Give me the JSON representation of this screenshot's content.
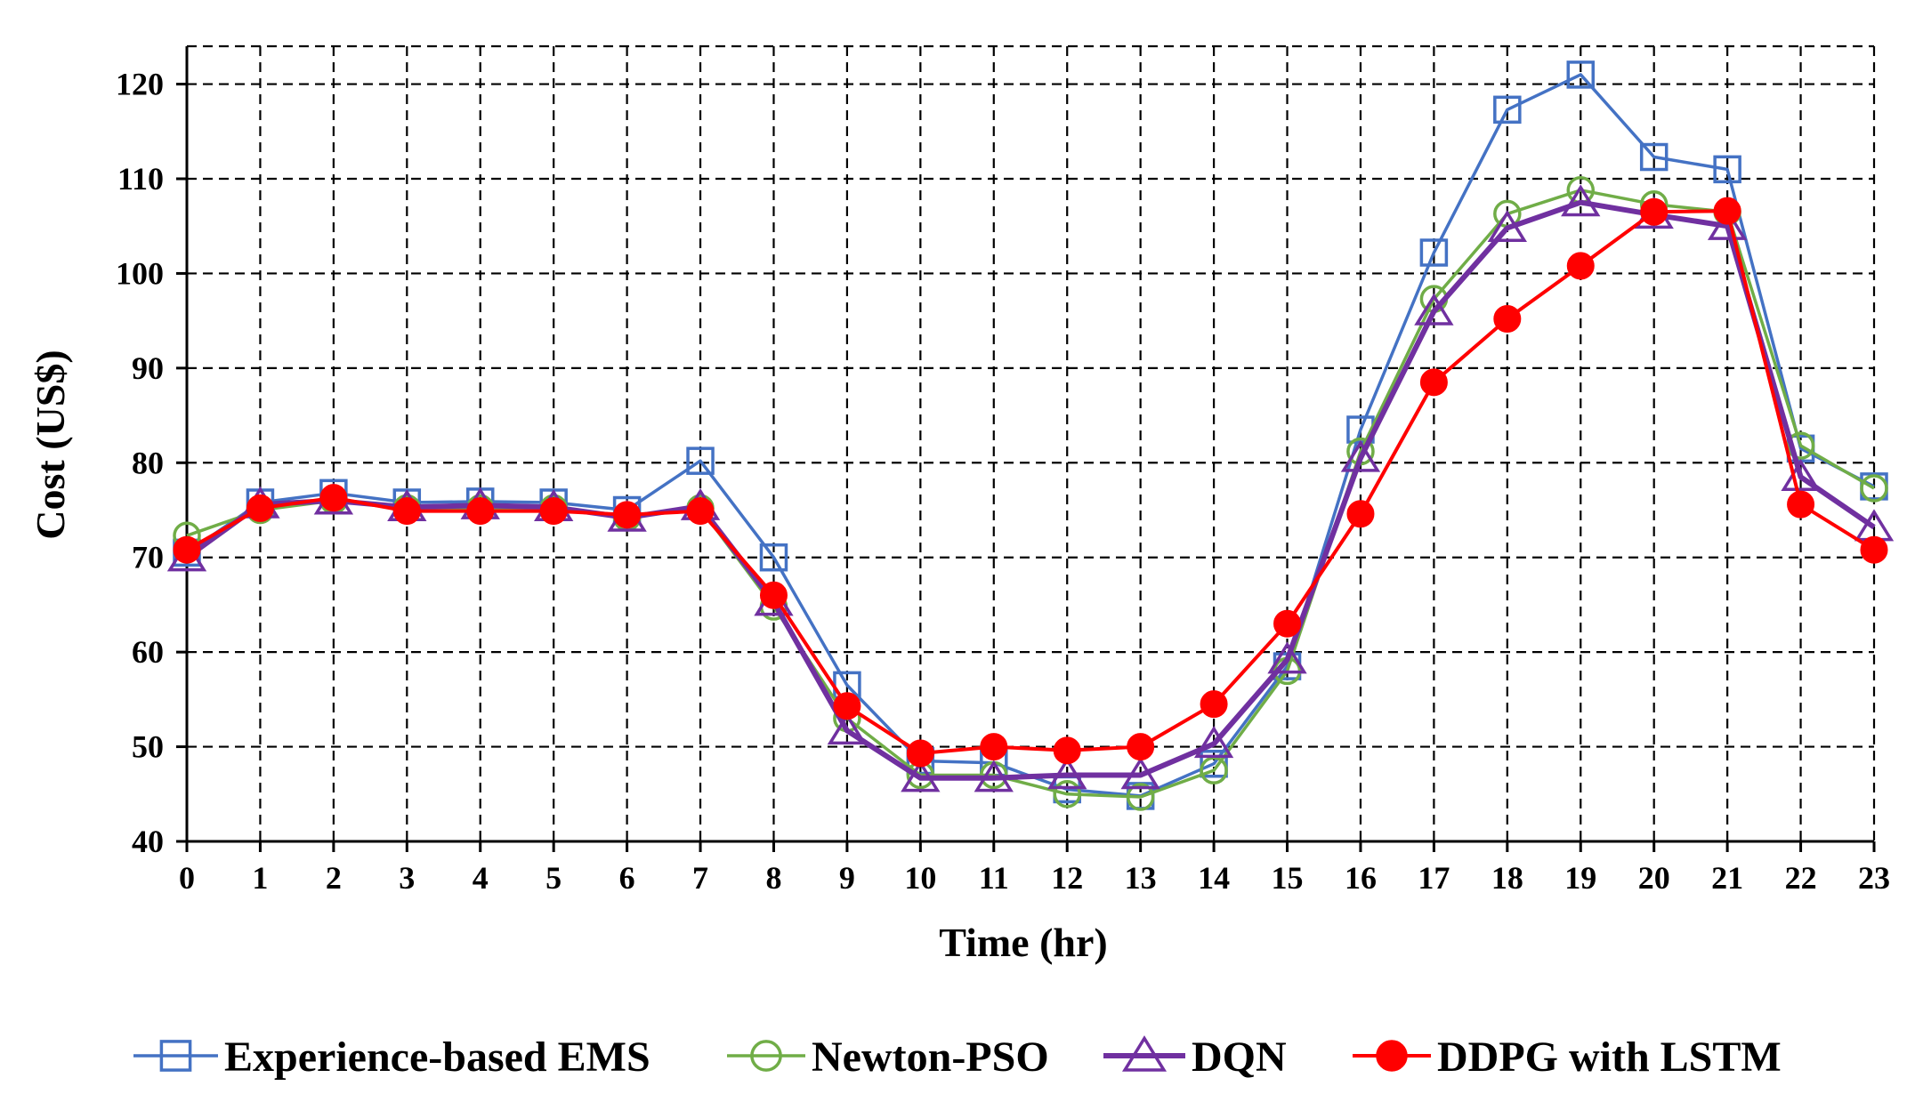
{
  "chart_data": {
    "type": "line",
    "title": "",
    "xlabel": "Time (hr)",
    "ylabel": "Cost (US$)",
    "x": [
      0,
      1,
      2,
      3,
      4,
      5,
      6,
      7,
      8,
      9,
      10,
      11,
      12,
      13,
      14,
      15,
      16,
      17,
      18,
      19,
      20,
      21,
      22,
      23
    ],
    "xlim": [
      0,
      23
    ],
    "ylim": [
      40,
      124
    ],
    "yticks": [
      40,
      50,
      60,
      70,
      80,
      90,
      100,
      110,
      120
    ],
    "grid": true,
    "legend_position": "bottom",
    "series": [
      {
        "name": "Experience-based EMS",
        "color": "#4472C4",
        "marker": "square",
        "values": [
          70.5,
          75.8,
          76.8,
          75.8,
          75.9,
          75.8,
          75.0,
          80.2,
          70.0,
          56.5,
          48.5,
          48.3,
          45.5,
          44.8,
          48.2,
          58.5,
          83.5,
          102.2,
          117.3,
          121.0,
          112.3,
          111.0,
          81.5,
          77.5
        ]
      },
      {
        "name": "Newton-PSO",
        "color": "#70AD47",
        "marker": "circle",
        "values": [
          72.3,
          75.0,
          76.0,
          75.2,
          75.2,
          75.2,
          74.2,
          75.2,
          64.8,
          53.0,
          47.0,
          47.0,
          45.0,
          44.7,
          47.5,
          58.0,
          81.2,
          97.3,
          106.3,
          108.8,
          107.3,
          106.5,
          81.8,
          77.3
        ]
      },
      {
        "name": "DQN",
        "color": "#7030A0",
        "marker": "triangle",
        "values": [
          70.0,
          75.6,
          76.0,
          75.3,
          75.5,
          75.3,
          74.2,
          75.4,
          65.3,
          51.7,
          46.7,
          46.7,
          47.0,
          47.0,
          50.3,
          59.2,
          80.5,
          96.0,
          104.8,
          107.5,
          106.2,
          105.0,
          78.5,
          73.2
        ]
      },
      {
        "name": "DDPG with LSTM",
        "color": "#FF0000",
        "marker": "filled-circle",
        "values": [
          70.8,
          75.2,
          76.3,
          74.9,
          74.9,
          74.9,
          74.5,
          74.9,
          66.0,
          54.3,
          49.3,
          50.0,
          49.6,
          50.0,
          54.5,
          63.0,
          74.6,
          88.5,
          95.2,
          100.8,
          106.5,
          106.6,
          75.6,
          70.8
        ]
      }
    ]
  }
}
